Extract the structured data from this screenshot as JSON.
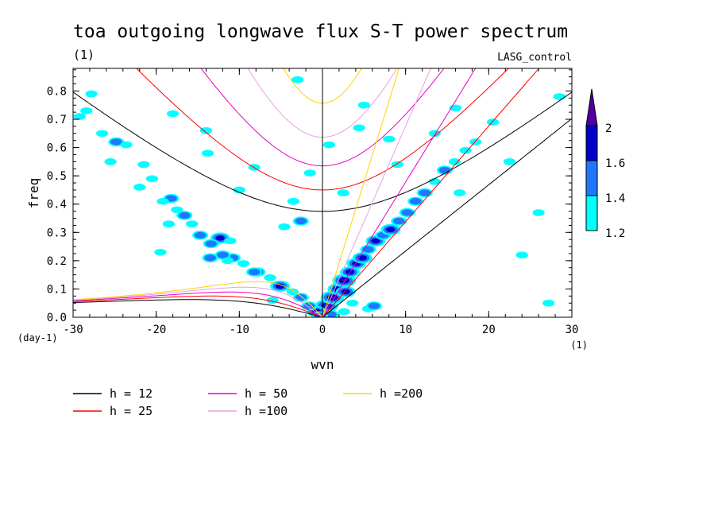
{
  "chart_data": {
    "type": "contour",
    "title": "toa outgoing longwave flux S-T power spectrum",
    "subtitle_left": "(1)",
    "subtitle_right": "LASG_control",
    "xlabel": "wvn",
    "ylabel": "freq",
    "x_unit": "(1)",
    "y_unit": "(day-1)",
    "xlim": [
      -30,
      30
    ],
    "ylim": [
      0,
      0.88
    ],
    "xticks": [
      -30,
      -20,
      -10,
      0,
      10,
      20,
      30
    ],
    "xtick_labels": [
      "-30",
      "-20",
      "-10",
      "0",
      "10",
      "20",
      "30"
    ],
    "yticks": [
      0,
      0.1,
      0.2,
      0.3,
      0.4,
      0.5,
      0.6,
      0.7,
      0.8
    ],
    "ytick_labels": [
      "0.0",
      "0.1",
      "0.2",
      "0.3",
      "0.4",
      "0.5",
      "0.6",
      "0.7",
      "0.8"
    ],
    "colorbar": {
      "levels": [
        1.2,
        1.4,
        1.6,
        2
      ],
      "labels": [
        "1.2",
        "1.4",
        "1.6",
        "2"
      ],
      "colors": [
        "#00ffff",
        "#1e78ff",
        "#0000c8",
        "#5000a0"
      ]
    },
    "curves": [
      {
        "label": "h = 12",
        "h": 12,
        "color": "#000000",
        "stroke_weight": 1.0
      },
      {
        "label": "h = 25",
        "h": 25,
        "color": "#ff0000",
        "stroke_weight": 1.0
      },
      {
        "label": "h = 50",
        "h": 50,
        "color": "#e600c8",
        "stroke_weight": 1.0
      },
      {
        "label": "h =100",
        "h": 100,
        "color": "#e6a0e6",
        "stroke_weight": 1.0
      },
      {
        "label": "h =200",
        "h": 200,
        "color": "#ffd200",
        "stroke_weight": 1.0
      }
    ],
    "legend_placement": "below-plot",
    "blobs": [
      {
        "x": 0.5,
        "y": 0.04,
        "level": 4
      },
      {
        "x": 1.2,
        "y": 0.07,
        "level": 4
      },
      {
        "x": 1.8,
        "y": 0.1,
        "level": 3
      },
      {
        "x": 2.6,
        "y": 0.13,
        "level": 4
      },
      {
        "x": 3.3,
        "y": 0.16,
        "level": 3
      },
      {
        "x": 4.1,
        "y": 0.19,
        "level": 3
      },
      {
        "x": 4.8,
        "y": 0.21,
        "level": 3
      },
      {
        "x": 5.5,
        "y": 0.24,
        "level": 2
      },
      {
        "x": 6.4,
        "y": 0.27,
        "level": 3
      },
      {
        "x": 7.3,
        "y": 0.29,
        "level": 2
      },
      {
        "x": 8.2,
        "y": 0.31,
        "level": 3
      },
      {
        "x": 9.2,
        "y": 0.34,
        "level": 2
      },
      {
        "x": 10.2,
        "y": 0.37,
        "level": 2
      },
      {
        "x": 11.2,
        "y": 0.41,
        "level": 2
      },
      {
        "x": 12.3,
        "y": 0.44,
        "level": 2
      },
      {
        "x": 13.5,
        "y": 0.48,
        "level": 1
      },
      {
        "x": 14.7,
        "y": 0.52,
        "level": 2
      },
      {
        "x": 15.9,
        "y": 0.55,
        "level": 1
      },
      {
        "x": 17.2,
        "y": 0.59,
        "level": 1
      },
      {
        "x": 18.4,
        "y": 0.62,
        "level": 1
      },
      {
        "x": 3.6,
        "y": 0.05,
        "level": 1
      },
      {
        "x": 5.5,
        "y": 0.03,
        "level": 1
      },
      {
        "x": 6.2,
        "y": 0.04,
        "level": 2
      },
      {
        "x": 2.6,
        "y": 0.02,
        "level": 1
      },
      {
        "x": -0.7,
        "y": 0.02,
        "level": 3
      },
      {
        "x": -1.6,
        "y": 0.04,
        "level": 2
      },
      {
        "x": -2.6,
        "y": 0.07,
        "level": 2
      },
      {
        "x": -3.6,
        "y": 0.09,
        "level": 1
      },
      {
        "x": -5.1,
        "y": 0.11,
        "level": 3
      },
      {
        "x": -6.3,
        "y": 0.14,
        "level": 1
      },
      {
        "x": -7.8,
        "y": 0.16,
        "level": 2
      },
      {
        "x": -9.5,
        "y": 0.19,
        "level": 1
      },
      {
        "x": -10.8,
        "y": 0.21,
        "level": 2
      },
      {
        "x": -12.0,
        "y": 0.22,
        "level": 2
      },
      {
        "x": -11.4,
        "y": 0.2,
        "level": 1
      },
      {
        "x": -12.3,
        "y": 0.28,
        "level": 3
      },
      {
        "x": -11.1,
        "y": 0.27,
        "level": 1
      },
      {
        "x": -13.4,
        "y": 0.26,
        "level": 2
      },
      {
        "x": -14.7,
        "y": 0.29,
        "level": 2
      },
      {
        "x": -15.7,
        "y": 0.33,
        "level": 1
      },
      {
        "x": -16.6,
        "y": 0.36,
        "level": 2
      },
      {
        "x": -17.5,
        "y": 0.38,
        "level": 1
      },
      {
        "x": -18.2,
        "y": 0.42,
        "level": 2
      },
      {
        "x": -19.2,
        "y": 0.41,
        "level": 1
      },
      {
        "x": -18.5,
        "y": 0.33,
        "level": 1
      },
      {
        "x": -20.5,
        "y": 0.49,
        "level": 1
      },
      {
        "x": -21.5,
        "y": 0.54,
        "level": 1
      },
      {
        "x": -24.8,
        "y": 0.62,
        "level": 2
      },
      {
        "x": -23.6,
        "y": 0.61,
        "level": 1
      },
      {
        "x": -29.2,
        "y": 0.71,
        "level": 1
      },
      {
        "x": -28.4,
        "y": 0.73,
        "level": 1
      },
      {
        "x": -27.8,
        "y": 0.79,
        "level": 1
      },
      {
        "x": -26.5,
        "y": 0.65,
        "level": 1
      },
      {
        "x": -8.2,
        "y": 0.16,
        "level": 2
      },
      {
        "x": -2.6,
        "y": 0.34,
        "level": 2
      },
      {
        "x": -4.6,
        "y": 0.32,
        "level": 1
      },
      {
        "x": -3.5,
        "y": 0.41,
        "level": 1
      },
      {
        "x": 5.0,
        "y": 0.75,
        "level": 1
      },
      {
        "x": 4.4,
        "y": 0.67,
        "level": 1
      },
      {
        "x": -13.8,
        "y": 0.58,
        "level": 1
      },
      {
        "x": -8.2,
        "y": 0.53,
        "level": 1
      },
      {
        "x": -13.5,
        "y": 0.21,
        "level": 2
      },
      {
        "x": 2.5,
        "y": 0.44,
        "level": 1
      },
      {
        "x": 24.0,
        "y": 0.22,
        "level": 1
      },
      {
        "x": 27.2,
        "y": 0.05,
        "level": 1
      },
      {
        "x": 13.5,
        "y": 0.65,
        "level": 1
      },
      {
        "x": 16.0,
        "y": 0.74,
        "level": 1
      },
      {
        "x": 20.5,
        "y": 0.69,
        "level": 1
      },
      {
        "x": 22.5,
        "y": 0.55,
        "level": 1
      },
      {
        "x": 26.0,
        "y": 0.37,
        "level": 1
      },
      {
        "x": -18.0,
        "y": 0.72,
        "level": 1
      },
      {
        "x": -14.0,
        "y": 0.66,
        "level": 1
      },
      {
        "x": -3.0,
        "y": 0.84,
        "level": 1
      },
      {
        "x": -1.5,
        "y": 0.51,
        "level": 1
      },
      {
        "x": 8.0,
        "y": 0.63,
        "level": 1
      },
      {
        "x": -10.0,
        "y": 0.45,
        "level": 1
      },
      {
        "x": 0.8,
        "y": 0.61,
        "level": 1
      },
      {
        "x": 2.8,
        "y": 0.09,
        "level": 3
      },
      {
        "x": 1.0,
        "y": 0.01,
        "level": 2
      },
      {
        "x": -0.3,
        "y": 0.005,
        "level": 2
      },
      {
        "x": -6.0,
        "y": 0.06,
        "level": 1
      },
      {
        "x": 9.0,
        "y": 0.54,
        "level": 1
      },
      {
        "x": -22.0,
        "y": 0.46,
        "level": 1
      },
      {
        "x": -19.5,
        "y": 0.23,
        "level": 1
      },
      {
        "x": -25.5,
        "y": 0.55,
        "level": 1
      },
      {
        "x": 28.5,
        "y": 0.78,
        "level": 1
      },
      {
        "x": 16.5,
        "y": 0.44,
        "level": 1
      }
    ]
  }
}
